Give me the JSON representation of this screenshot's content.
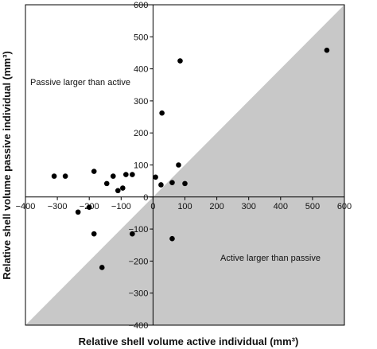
{
  "chart_data": {
    "type": "scatter",
    "xlabel": "Relative shell volume active individual (mm³)",
    "ylabel": "Relative shell volume passive individual (mm³)",
    "xlim": [
      -400,
      600
    ],
    "ylim": [
      -400,
      600
    ],
    "x_ticks": [
      "−400",
      "−300",
      "−200",
      "−100",
      "0",
      "100",
      "200",
      "300",
      "400",
      "500",
      "600"
    ],
    "y_ticks": [
      "−400",
      "−300",
      "−200",
      "−100",
      "0",
      "100",
      "200",
      "300",
      "400",
      "500",
      "600"
    ],
    "grid": false,
    "shaded_region": "below y = x (active larger than passive), gray",
    "annotations": [
      {
        "text": "Passive larger than active"
      },
      {
        "text": "Active larger than passive"
      }
    ],
    "points": [
      {
        "x": -310,
        "y": 65
      },
      {
        "x": -275,
        "y": 65
      },
      {
        "x": -185,
        "y": 80
      },
      {
        "x": -145,
        "y": 42
      },
      {
        "x": -125,
        "y": 65
      },
      {
        "x": -110,
        "y": 20
      },
      {
        "x": -95,
        "y": 28
      },
      {
        "x": -85,
        "y": 70
      },
      {
        "x": -65,
        "y": 70
      },
      {
        "x": 8,
        "y": 62
      },
      {
        "x": 25,
        "y": 38
      },
      {
        "x": 60,
        "y": 45
      },
      {
        "x": 80,
        "y": 100
      },
      {
        "x": 100,
        "y": 42
      },
      {
        "x": 28,
        "y": 262
      },
      {
        "x": 85,
        "y": 425
      },
      {
        "x": 545,
        "y": 458
      },
      {
        "x": -235,
        "y": -47
      },
      {
        "x": -200,
        "y": -32
      },
      {
        "x": -185,
        "y": -115
      },
      {
        "x": -160,
        "y": -220
      },
      {
        "x": -65,
        "y": -115
      },
      {
        "x": 60,
        "y": -130
      }
    ]
  },
  "colors": {
    "shade": "#c8c8c8",
    "point": "#000000",
    "axis": "#000000"
  }
}
